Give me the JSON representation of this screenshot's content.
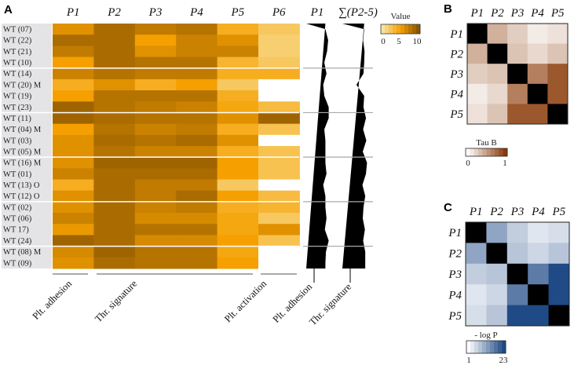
{
  "chart_data": [
    {
      "type": "heatmap",
      "panel": "A",
      "columns": [
        "P1",
        "P2",
        "P3",
        "P4",
        "P5",
        "P6"
      ],
      "rows": [
        "WT (07)",
        "WT (22)",
        "WT (21)",
        "WT (10)",
        "WT (14)",
        "WT (20) M",
        "WT (19)",
        "WT (23)",
        "WT (11)",
        "WT (04) M",
        "WT (03)",
        "WT (05) M",
        "WT (16) M",
        "WT (01)",
        "WT (13) O",
        "WT (12) O",
        "WT (02)",
        "WT (06)",
        "WT 17)",
        "WT (24)",
        "WT (08) M",
        "WT (09)"
      ],
      "row_groups_size": 4,
      "values": [
        [
          6,
          8.5,
          7.5,
          8,
          4,
          2
        ],
        [
          8.5,
          8.5,
          5,
          7,
          6,
          1.5
        ],
        [
          7.5,
          8.5,
          6,
          7,
          7,
          1.5
        ],
        [
          5,
          8.5,
          8,
          8,
          3.5,
          2
        ],
        [
          7,
          8,
          7.5,
          7.5,
          4,
          4
        ],
        [
          4,
          6,
          4,
          5,
          2,
          null
        ],
        [
          5,
          8,
          8,
          8,
          4,
          null
        ],
        [
          9,
          8,
          7.5,
          7,
          4.5,
          3
        ],
        [
          9,
          8.5,
          8,
          8,
          6,
          9
        ],
        [
          5,
          8,
          7,
          7.5,
          4,
          2.5
        ],
        [
          6,
          8.5,
          8,
          8.5,
          6,
          null
        ],
        [
          6,
          8,
          7,
          7,
          4,
          2.5
        ],
        [
          6,
          9,
          9,
          9,
          5,
          2.5
        ],
        [
          7,
          8.5,
          8.5,
          8.5,
          5,
          2.5
        ],
        [
          4,
          8.5,
          7.5,
          7.5,
          2,
          null
        ],
        [
          6,
          8.5,
          7.5,
          8.5,
          5,
          3
        ],
        [
          6,
          8.5,
          7,
          7.5,
          4,
          3.5
        ],
        [
          7,
          8.5,
          6.5,
          6.5,
          4.5,
          2
        ],
        [
          5.5,
          8.5,
          8,
          8,
          4.5,
          6
        ],
        [
          9,
          8.5,
          6.5,
          6.5,
          5,
          2.5
        ],
        [
          6.5,
          9,
          8,
          8,
          4.5,
          null
        ],
        [
          6,
          8.5,
          8,
          8,
          5,
          null
        ]
      ],
      "profile_headers": [
        "P1",
        "∑(P2-5)"
      ],
      "colorbar": {
        "title": "Value",
        "ticks": [
          "0",
          "5",
          "10"
        ],
        "range": [
          0,
          10
        ],
        "colors": [
          "#f8e3a0",
          "#f5a000",
          "#8a5500"
        ]
      },
      "column_groups": [
        "Plt. adhesion",
        "Thr. signature",
        "Plt. activation"
      ],
      "profile_groups": [
        "Plt. adhesion",
        "Thr. signature"
      ]
    },
    {
      "type": "heatmap",
      "panel": "B",
      "labels": [
        "P1",
        "P2",
        "P3",
        "P4",
        "P5"
      ],
      "values": [
        [
          null,
          0.4,
          0.25,
          0.1,
          0.15
        ],
        [
          0.4,
          null,
          0.3,
          0.2,
          0.3
        ],
        [
          0.25,
          0.3,
          null,
          0.65,
          0.85
        ],
        [
          0.1,
          0.2,
          0.65,
          null,
          0.85
        ],
        [
          0.15,
          0.3,
          0.85,
          0.85,
          null
        ]
      ],
      "colorbar": {
        "title": "Tau B",
        "ticks": [
          "0",
          "1"
        ],
        "range": [
          0,
          1
        ],
        "colors": [
          "#ffffff",
          "#8b3a08"
        ]
      }
    },
    {
      "type": "heatmap",
      "panel": "C",
      "labels": [
        "P1",
        "P2",
        "P3",
        "P4",
        "P5"
      ],
      "values": [
        [
          null,
          12,
          7,
          4,
          5
        ],
        [
          12,
          null,
          8,
          6,
          8
        ],
        [
          7,
          8,
          null,
          17,
          23
        ],
        [
          4,
          6,
          17,
          null,
          23
        ],
        [
          5,
          8,
          23,
          23,
          null
        ]
      ],
      "colorbar": {
        "title": "- log P",
        "ticks": [
          "1",
          "23"
        ],
        "range": [
          1,
          23
        ],
        "colors": [
          "#ffffff",
          "#1f4a86"
        ]
      }
    }
  ]
}
